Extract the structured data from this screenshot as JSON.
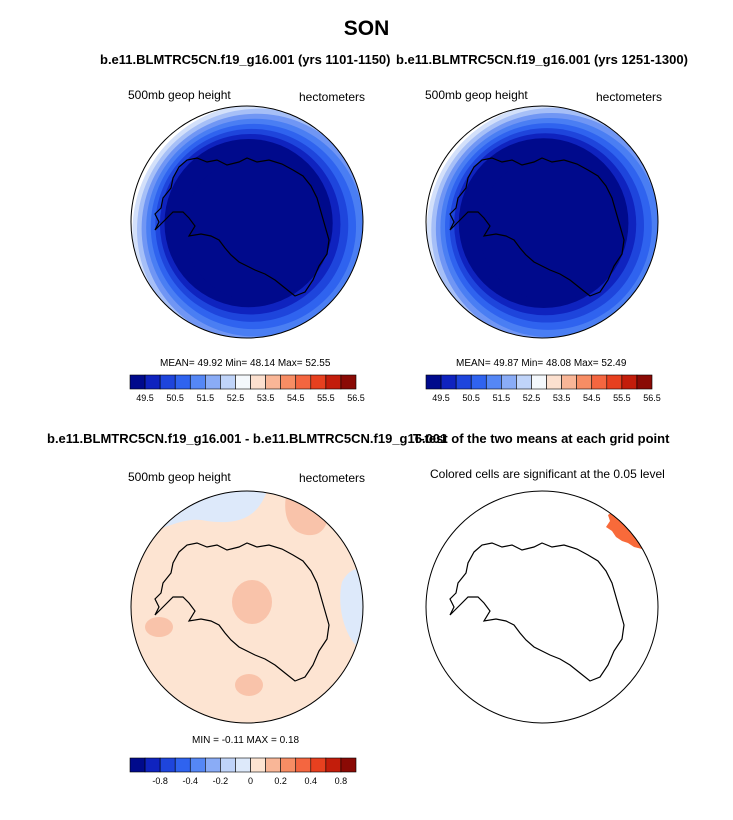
{
  "page": {
    "title": "SON",
    "left_heading": "b.e11.BLMTRC5CN.f19_g16.001 (yrs 1101-1150)",
    "right_heading": "b.e11.BLMTRC5CN.f19_g16.001 (yrs 1251-1300)",
    "diff_heading": "b.e11.BLMTRC5CN.f19_g16.001 - b.e11.BLMTRC5CN.f19_g16.001",
    "ttest_heading": "T-test of the two means at each grid point"
  },
  "chart_data": [
    {
      "type": "heatmap",
      "projection": "south-polar-stereographic",
      "title": "b.e11.BLMTRC5CN.f19_g16.001 (yrs 1101-1150)",
      "variable_label": "500mb geop height",
      "units_label": "hectometers",
      "stats_text": "MEAN= 49.92 Min= 48.14 Max= 52.55",
      "mean": 49.92,
      "min": 48.14,
      "max": 52.55,
      "colorbar_ticks": [
        "49.5",
        "50.5",
        "51.5",
        "52.5",
        "53.5",
        "54.5",
        "55.5",
        "56.5"
      ],
      "colorbar_colors": [
        "#000a8c",
        "#0f23bf",
        "#1e45dc",
        "#2f63ef",
        "#5587f5",
        "#8aacf6",
        "#c0d4f9",
        "#f4f8fc",
        "#fce0cf",
        "#f9b697",
        "#f78d64",
        "#f46640",
        "#e7401f",
        "#c31d0b",
        "#8a0a05"
      ],
      "rings": [
        {
          "value": 49.0,
          "color": "#000a8c"
        },
        {
          "value": 49.5,
          "color": "#0f23bf"
        },
        {
          "value": 50.0,
          "color": "#1e45dc"
        },
        {
          "value": 50.5,
          "color": "#2f63ef"
        },
        {
          "value": 51.0,
          "color": "#4a7ef3"
        },
        {
          "value": 51.5,
          "color": "#7096f4"
        },
        {
          "value": 52.0,
          "color": "#a6bff7"
        },
        {
          "value": 52.5,
          "color": "#d3e0fa"
        }
      ]
    },
    {
      "type": "heatmap",
      "projection": "south-polar-stereographic",
      "title": "b.e11.BLMTRC5CN.f19_g16.001 (yrs 1251-1300)",
      "variable_label": "500mb geop height",
      "units_label": "hectometers",
      "stats_text": "MEAN= 49.87 Min= 48.08 Max= 52.49",
      "mean": 49.87,
      "min": 48.08,
      "max": 52.49,
      "colorbar_ticks": [
        "49.5",
        "50.5",
        "51.5",
        "52.5",
        "53.5",
        "54.5",
        "55.5",
        "56.5"
      ],
      "colorbar_colors": [
        "#000a8c",
        "#0f23bf",
        "#1e45dc",
        "#2f63ef",
        "#5587f5",
        "#8aacf6",
        "#c0d4f9",
        "#f4f8fc",
        "#fce0cf",
        "#f9b697",
        "#f78d64",
        "#f46640",
        "#e7401f",
        "#c31d0b",
        "#8a0a05"
      ],
      "rings": [
        {
          "value": 49.0,
          "color": "#000a8c"
        },
        {
          "value": 49.5,
          "color": "#0f23bf"
        },
        {
          "value": 50.0,
          "color": "#1e45dc"
        },
        {
          "value": 50.5,
          "color": "#2f63ef"
        },
        {
          "value": 51.0,
          "color": "#4a7ef3"
        },
        {
          "value": 51.5,
          "color": "#7096f4"
        },
        {
          "value": 52.0,
          "color": "#a6bff7"
        },
        {
          "value": 52.5,
          "color": "#d3e0fa"
        }
      ]
    },
    {
      "type": "heatmap",
      "projection": "south-polar-stereographic",
      "title": "b.e11.BLMTRC5CN.f19_g16.001 - b.e11.BLMTRC5CN.f19_g16.001",
      "variable_label": "500mb geop height",
      "units_label": "hectometers",
      "stats_text": "MIN = -0.11 MAX = 0.18",
      "min": -0.11,
      "max": 0.18,
      "colorbar_ticks": [
        "-0.8",
        "-0.4",
        "-0.2",
        "0",
        "0.2",
        "0.4",
        "0.8"
      ],
      "colorbar_colors": [
        "#000a8c",
        "#0f23bf",
        "#1e45dc",
        "#2f63ef",
        "#5587f5",
        "#8aacf6",
        "#c0d4f9",
        "#dde9fa",
        "#fde4d2",
        "#f9b697",
        "#f78d64",
        "#f46640",
        "#e7401f",
        "#c31d0b",
        "#8a0a05"
      ],
      "background": "#fde4d2",
      "regions": [
        {
          "name": "negative-top",
          "sign": "negative",
          "color": "#dde9fa"
        },
        {
          "name": "negative-right",
          "sign": "negative",
          "color": "#dde9fa"
        },
        {
          "name": "negative-bottom-left",
          "sign": "negative",
          "color": "#dde9fa"
        },
        {
          "name": "positive-top-right",
          "sign": "positive",
          "color": "#f9c3aa"
        },
        {
          "name": "positive-center",
          "sign": "positive",
          "color": "#f9c3aa"
        },
        {
          "name": "positive-left",
          "sign": "positive",
          "color": "#f9c3aa"
        },
        {
          "name": "positive-bottom",
          "sign": "positive",
          "color": "#f9c3aa"
        }
      ]
    },
    {
      "type": "heatmap",
      "projection": "south-polar-stereographic",
      "title": "T-test of the two means at each grid point",
      "annotation": "Colored cells are significant at the 0.05 level",
      "significance_level": 0.05,
      "significant_color": "#f86a3a"
    }
  ]
}
